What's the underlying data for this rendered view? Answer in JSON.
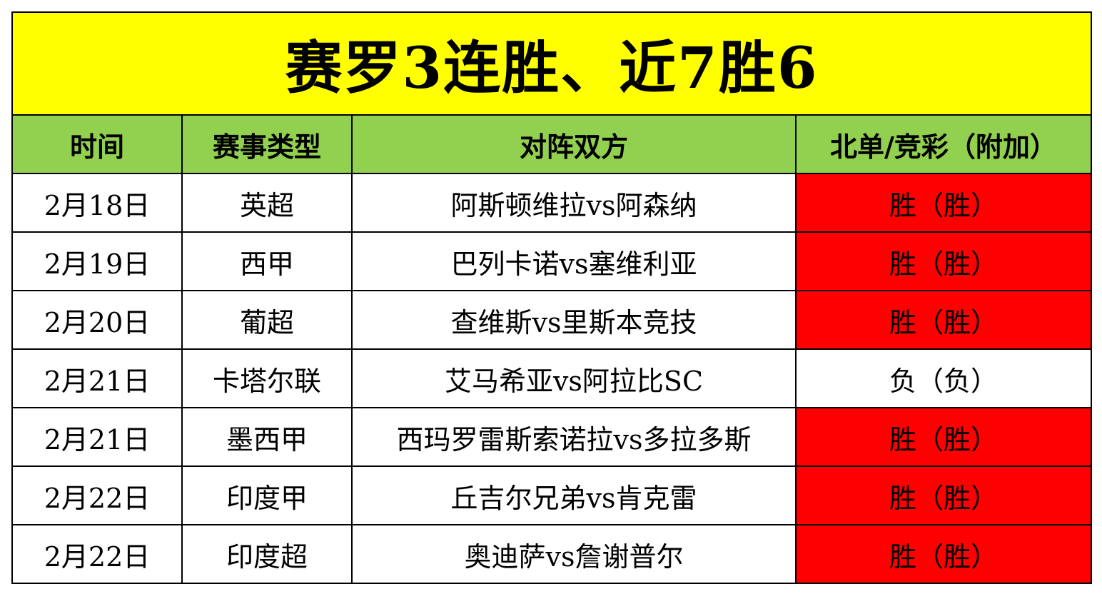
{
  "title": "赛罗3连胜、近7胜6",
  "colors": {
    "title_bg": "#FFFF00",
    "header_bg": "#92D050",
    "win_bg": "#FF0000",
    "loss_bg": "#FFFFFF",
    "border": "#000000"
  },
  "headers": [
    "时间",
    "赛事类型",
    "对阵双方",
    "北单/竞彩（附加）"
  ],
  "rows": [
    {
      "date": "2月18日",
      "league": "英超",
      "match": "阿斯顿维拉vs阿森纳",
      "result": "胜（胜）",
      "highlight": true
    },
    {
      "date": "2月19日",
      "league": "西甲",
      "match": "巴列卡诺vs塞维利亚",
      "result": "胜（胜）",
      "highlight": true
    },
    {
      "date": "2月20日",
      "league": "葡超",
      "match": "查维斯vs里斯本竞技",
      "result": "胜（胜）",
      "highlight": true
    },
    {
      "date": "2月21日",
      "league": "卡塔尔联",
      "match": "艾马希亚vs阿拉比SC",
      "result": "负（负）",
      "highlight": false
    },
    {
      "date": "2月21日",
      "league": "墨西甲",
      "match": "西玛罗雷斯索诺拉vs多拉多斯",
      "result": "胜（胜）",
      "highlight": true
    },
    {
      "date": "2月22日",
      "league": "印度甲",
      "match": "丘吉尔兄弟vs肯克雷",
      "result": "胜（胜）",
      "highlight": true
    },
    {
      "date": "2月22日",
      "league": "印度超",
      "match": "奥迪萨vs詹谢普尔",
      "result": "胜（胜）",
      "highlight": true
    }
  ]
}
